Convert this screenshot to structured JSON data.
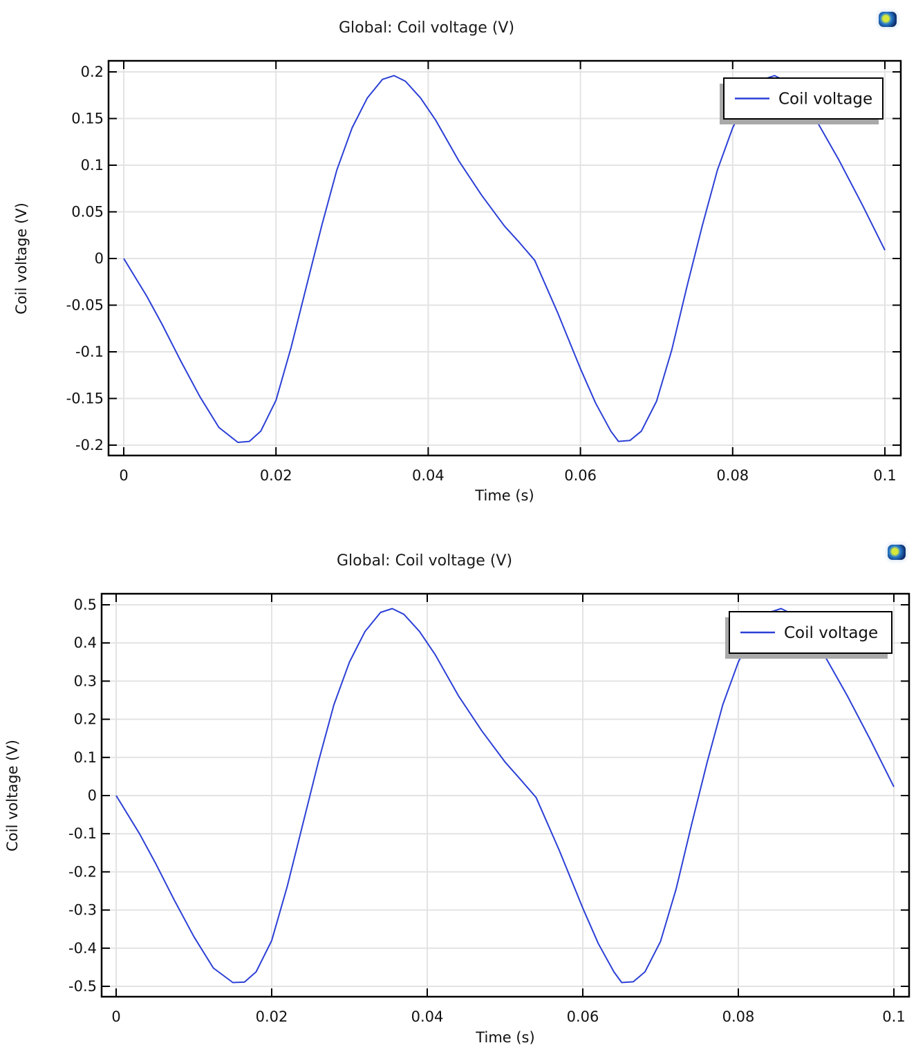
{
  "chart_data": [
    {
      "type": "line",
      "title": "Global: Coil voltage (V)",
      "xlabel": "Time (s)",
      "ylabel": "Coil voltage (V)",
      "xlim": [
        0,
        0.1
      ],
      "ylim": [
        -0.2,
        0.2
      ],
      "xticks": [
        "0",
        "0.02",
        "0.04",
        "0.06",
        "0.08",
        "0.1"
      ],
      "yticks": [
        "0.2",
        "0.15",
        "0.1",
        "0.05",
        "0",
        "-0.05",
        "-0.1",
        "-0.15",
        "-0.2"
      ],
      "grid": true,
      "legend_position": "upper right",
      "series": [
        {
          "name": "Coil voltage",
          "color": "#2b3fd6",
          "x": [
            0,
            0.003,
            0.005,
            0.0075,
            0.01,
            0.0125,
            0.015,
            0.0165,
            0.018,
            0.02,
            0.022,
            0.024,
            0.026,
            0.028,
            0.03,
            0.032,
            0.034,
            0.0355,
            0.037,
            0.039,
            0.041,
            0.044,
            0.047,
            0.05,
            0.052,
            0.054,
            0.057,
            0.06,
            0.062,
            0.064,
            0.065,
            0.0665,
            0.068,
            0.07,
            0.072,
            0.074,
            0.076,
            0.078,
            0.08,
            0.082,
            0.084,
            0.0855,
            0.087,
            0.089,
            0.091,
            0.094,
            0.097,
            0.1
          ],
          "values": [
            0,
            -0.04,
            -0.07,
            -0.11,
            -0.148,
            -0.181,
            -0.197,
            -0.196,
            -0.185,
            -0.152,
            -0.095,
            -0.03,
            0.035,
            0.095,
            0.14,
            0.172,
            0.192,
            0.196,
            0.19,
            0.172,
            0.148,
            0.105,
            0.068,
            0.035,
            0.017,
            -0.002,
            -0.058,
            -0.118,
            -0.155,
            -0.185,
            -0.196,
            -0.195,
            -0.185,
            -0.153,
            -0.098,
            -0.03,
            0.035,
            0.095,
            0.14,
            0.172,
            0.192,
            0.196,
            0.19,
            0.172,
            0.148,
            0.105,
            0.058,
            0.009
          ]
        }
      ]
    },
    {
      "type": "line",
      "title": "Global: Coil voltage (V)",
      "xlabel": "Time (s)",
      "ylabel": "Coil voltage (V)",
      "xlim": [
        0,
        0.1
      ],
      "ylim": [
        -0.5,
        0.5
      ],
      "xticks": [
        "0",
        "0.02",
        "0.04",
        "0.06",
        "0.08",
        "0.1"
      ],
      "yticks": [
        "0.5",
        "0.4",
        "0.3",
        "0.2",
        "0.1",
        "0",
        "-0.1",
        "-0.2",
        "-0.3",
        "-0.4",
        "-0.5"
      ],
      "grid": true,
      "legend_position": "upper right",
      "series": [
        {
          "name": "Coil voltage",
          "color": "#2b3fd6",
          "x": [
            0,
            0.003,
            0.005,
            0.0075,
            0.01,
            0.0125,
            0.015,
            0.0165,
            0.018,
            0.02,
            0.022,
            0.024,
            0.026,
            0.028,
            0.03,
            0.032,
            0.034,
            0.0355,
            0.037,
            0.039,
            0.041,
            0.044,
            0.047,
            0.05,
            0.052,
            0.054,
            0.057,
            0.06,
            0.062,
            0.064,
            0.065,
            0.0665,
            0.068,
            0.07,
            0.072,
            0.074,
            0.076,
            0.078,
            0.08,
            0.082,
            0.084,
            0.0855,
            0.087,
            0.089,
            0.091,
            0.094,
            0.097,
            0.1
          ],
          "values": [
            0,
            -0.1,
            -0.175,
            -0.275,
            -0.37,
            -0.452,
            -0.49,
            -0.489,
            -0.462,
            -0.38,
            -0.238,
            -0.075,
            0.088,
            0.238,
            0.35,
            0.43,
            0.48,
            0.49,
            0.475,
            0.43,
            0.37,
            0.262,
            0.17,
            0.088,
            0.042,
            -0.005,
            -0.145,
            -0.295,
            -0.388,
            -0.462,
            -0.49,
            -0.488,
            -0.462,
            -0.382,
            -0.245,
            -0.075,
            0.088,
            0.238,
            0.35,
            0.43,
            0.48,
            0.49,
            0.475,
            0.43,
            0.37,
            0.262,
            0.145,
            0.023
          ]
        }
      ]
    }
  ],
  "plots": [
    {
      "title": "Global: Coil voltage (V)",
      "xlabel": "Time (s)",
      "ylabel": "Coil voltage (V)",
      "legend_label": "Coil voltage",
      "icon": "app-logo-icon"
    },
    {
      "title": "Global: Coil voltage (V)",
      "xlabel": "Time (s)",
      "ylabel": "Coil voltage (V)",
      "legend_label": "Coil voltage",
      "icon": "app-logo-icon"
    }
  ],
  "colors": {
    "line": "#2b3fd6",
    "grid": "#e3e3e3",
    "frame": "#000000",
    "legend_shadow": "#a9a9a9"
  }
}
